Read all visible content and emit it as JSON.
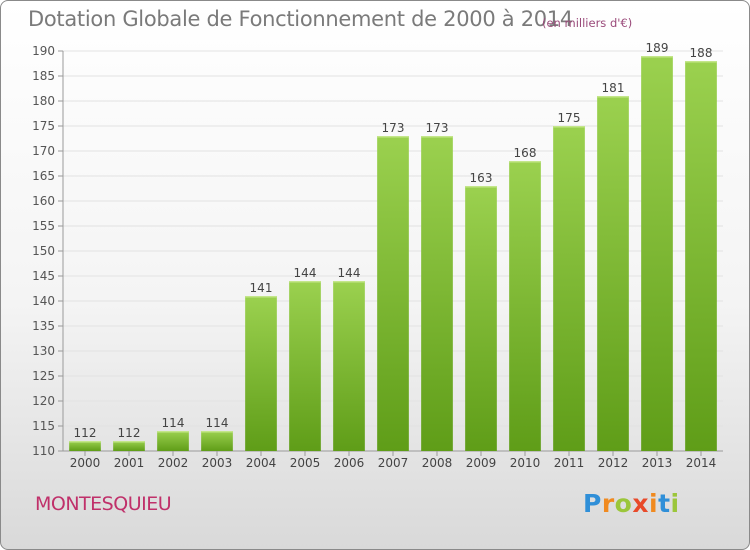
{
  "title": "Dotation Globale de Fonctionnement de 2000 à 2014",
  "unit_note": "(en milliers d'€)",
  "commune": "MONTESQUIEU",
  "logo": "Proxiti",
  "colors": {
    "bar_top": "#9bd14f",
    "bar_bottom": "#5f9d18",
    "title": "#7a7a7a",
    "commune": "#c0306a"
  },
  "chart_data": {
    "type": "bar",
    "title": "Dotation Globale de Fonctionnement de 2000 à 2014",
    "categories": [
      "2000",
      "2001",
      "2002",
      "2003",
      "2004",
      "2005",
      "2006",
      "2007",
      "2008",
      "2009",
      "2010",
      "2011",
      "2012",
      "2013",
      "2014"
    ],
    "values": [
      112,
      112,
      114,
      114,
      141,
      144,
      144,
      173,
      173,
      163,
      168,
      175,
      181,
      189,
      188
    ],
    "ylim": [
      110,
      190
    ],
    "yticks": [
      110,
      115,
      120,
      125,
      130,
      135,
      140,
      145,
      150,
      155,
      160,
      165,
      170,
      175,
      180,
      185,
      190
    ],
    "grid": true,
    "data_labels": true
  }
}
